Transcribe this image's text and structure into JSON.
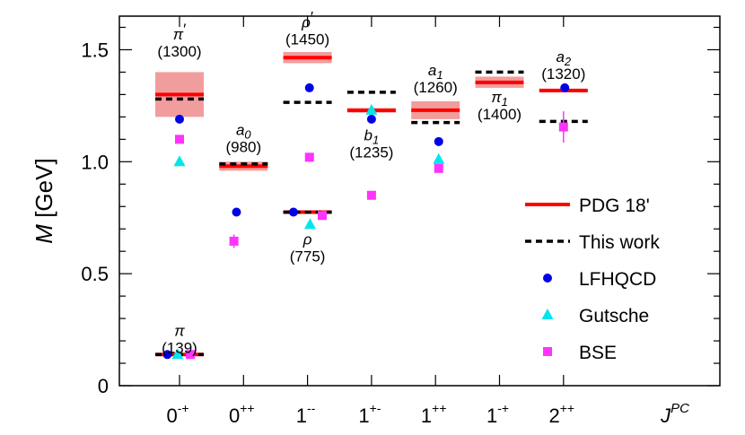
{
  "chart_data": {
    "type": "scatter",
    "title": "",
    "ylabel": "M [GeV]",
    "xlabel": "J^PC",
    "ylim": [
      0,
      1.65
    ],
    "yticks": [
      0,
      0.5,
      1.0,
      1.5
    ],
    "ytick_labels": [
      "0",
      "0.5",
      "1.0",
      "1.5"
    ],
    "categories": [
      {
        "base": "0",
        "sup": "-+"
      },
      {
        "base": "0",
        "sup": "++"
      },
      {
        "base": "1",
        "sup": "--"
      },
      {
        "base": "1",
        "sup": "+-"
      },
      {
        "base": "1",
        "sup": "++"
      },
      {
        "base": "1",
        "sup": "-+"
      },
      {
        "base": "2",
        "sup": "++"
      }
    ],
    "xaxis_title": {
      "base": "J",
      "sup": "PC"
    },
    "legend": {
      "position": "right",
      "entries": [
        {
          "name": "PDG 18'",
          "marker": "line-solid",
          "color": "#ff0000"
        },
        {
          "name": "This work",
          "marker": "line-dashed",
          "color": "#000000"
        },
        {
          "name": "LFHQCD",
          "marker": "circle",
          "color": "#0000e6"
        },
        {
          "name": "Gutsche",
          "marker": "triangle",
          "color": "#00e5ee"
        },
        {
          "name": "BSE",
          "marker": "square",
          "color": "#ff33ff"
        }
      ]
    },
    "series": {
      "pdg": [
        {
          "cat": 0,
          "value": 0.139,
          "band": [
            0.135,
            0.145
          ]
        },
        {
          "cat": 0,
          "value": 1.3,
          "band": [
            1.2,
            1.4
          ]
        },
        {
          "cat": 1,
          "value": 0.98,
          "band": [
            0.96,
            1.0
          ]
        },
        {
          "cat": 2,
          "value": 0.775,
          "band": [
            0.77,
            0.78
          ]
        },
        {
          "cat": 2,
          "value": 1.465,
          "band": [
            1.44,
            1.49
          ]
        },
        {
          "cat": 3,
          "value": 1.229,
          "band": [
            1.22,
            1.24
          ]
        },
        {
          "cat": 4,
          "value": 1.23,
          "band": [
            1.19,
            1.27
          ]
        },
        {
          "cat": 5,
          "value": 1.354,
          "band": [
            1.33,
            1.38
          ]
        },
        {
          "cat": 6,
          "value": 1.318,
          "band": [
            1.31,
            1.325
          ]
        }
      ],
      "this_work": [
        {
          "cat": 0,
          "value": 0.139
        },
        {
          "cat": 0,
          "value": 1.28
        },
        {
          "cat": 1,
          "value": 0.99
        },
        {
          "cat": 2,
          "value": 0.775
        },
        {
          "cat": 2,
          "value": 1.265
        },
        {
          "cat": 3,
          "value": 1.31
        },
        {
          "cat": 4,
          "value": 1.175
        },
        {
          "cat": 5,
          "value": 1.4
        },
        {
          "cat": 6,
          "value": 1.18
        }
      ],
      "lfhqcd": [
        {
          "cat": 0,
          "offset": -0.19,
          "value": 0.139
        },
        {
          "cat": 0,
          "offset": 0.0,
          "value": 1.19
        },
        {
          "cat": 1,
          "offset": -0.11,
          "value": 0.775
        },
        {
          "cat": 2,
          "offset": -0.22,
          "value": 0.775
        },
        {
          "cat": 2,
          "offset": 0.03,
          "value": 1.33
        },
        {
          "cat": 3,
          "offset": 0.0,
          "value": 1.19
        },
        {
          "cat": 4,
          "offset": 0.05,
          "value": 1.09
        },
        {
          "cat": 6,
          "offset": 0.02,
          "value": 1.33
        }
      ],
      "gutsche": [
        {
          "cat": 0,
          "offset": -0.03,
          "value": 0.139
        },
        {
          "cat": 0,
          "offset": 0.0,
          "value": 1.0
        },
        {
          "cat": 2,
          "offset": 0.04,
          "value": 0.72
        },
        {
          "cat": 3,
          "offset": 0.0,
          "value": 1.23
        },
        {
          "cat": 4,
          "offset": 0.05,
          "value": 1.01
        }
      ],
      "bse": [
        {
          "cat": 0,
          "offset": 0.17,
          "value": 0.139
        },
        {
          "cat": 0,
          "offset": 0.0,
          "value": 1.1
        },
        {
          "cat": 1,
          "offset": -0.15,
          "value": 0.645,
          "err": 0.03
        },
        {
          "cat": 2,
          "offset": 0.03,
          "value": 1.02,
          "err": 0.02
        },
        {
          "cat": 2,
          "offset": 0.23,
          "value": 0.76
        },
        {
          "cat": 3,
          "offset": 0.0,
          "value": 0.85
        },
        {
          "cat": 4,
          "offset": 0.05,
          "value": 0.97
        },
        {
          "cat": 6,
          "offset": 0.0,
          "value": 1.155,
          "err": 0.07
        }
      ]
    },
    "annotations": [
      {
        "name": "pi",
        "cat": 0,
        "offset": 0.0,
        "y": 0.222,
        "symbol": "π",
        "sub": "",
        "prime": false,
        "mass": "(139)"
      },
      {
        "name": "pi-prime",
        "cat": 0,
        "offset": 0.0,
        "y": 1.545,
        "symbol": "π",
        "sub": "",
        "prime": true,
        "mass": "(1300)"
      },
      {
        "name": "a0",
        "cat": 1,
        "offset": 0.0,
        "y": 1.12,
        "symbol": "a",
        "sub": "0",
        "prime": false,
        "mass": "(980)"
      },
      {
        "name": "rho-prime",
        "cat": 2,
        "offset": 0.0,
        "y": 1.6,
        "symbol": "ρ",
        "sub": "",
        "prime": true,
        "mass": "(1450)"
      },
      {
        "name": "rho",
        "cat": 2,
        "offset": 0.0,
        "y": 0.63,
        "symbol": "ρ",
        "sub": "",
        "prime": false,
        "mass": "(775)"
      },
      {
        "name": "b1",
        "cat": 3,
        "offset": 0.0,
        "y": 1.095,
        "symbol": "b",
        "sub": "1",
        "prime": false,
        "mass": "(1235)"
      },
      {
        "name": "a1",
        "cat": 4,
        "offset": 0.0,
        "y": 1.385,
        "symbol": "a",
        "sub": "1",
        "prime": false,
        "mass": "(1260)"
      },
      {
        "name": "pi1",
        "cat": 5,
        "offset": 0.0,
        "y": 1.265,
        "symbol": "π",
        "sub": "1",
        "prime": false,
        "mass": "(1400)"
      },
      {
        "name": "a2",
        "cat": 6,
        "offset": 0.0,
        "y": 1.445,
        "symbol": "a",
        "sub": "2",
        "prime": false,
        "mass": "(1320)"
      }
    ]
  }
}
